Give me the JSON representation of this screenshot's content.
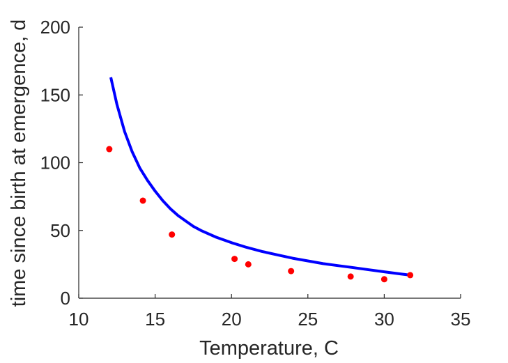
{
  "chart_data": {
    "type": "scatter",
    "xlabel": "Temperature, C",
    "ylabel": "time since birth at emergence, d",
    "xlim": [
      10,
      35
    ],
    "ylim": [
      0,
      200
    ],
    "xticks": [
      "10",
      "15",
      "20",
      "25",
      "30",
      "35"
    ],
    "yticks": [
      "0",
      "50",
      "100",
      "150",
      "200"
    ],
    "grid": false,
    "series": [
      {
        "kind": "points",
        "color": "#ff0000",
        "x": [
          12.0,
          14.2,
          16.1,
          20.2,
          21.1,
          23.9,
          27.8,
          30.0,
          31.7
        ],
        "y": [
          110,
          72,
          47,
          29,
          25,
          20,
          16,
          14,
          17
        ]
      },
      {
        "kind": "line",
        "color": "#0000ff",
        "x": [
          12.1,
          12.5,
          13,
          13.5,
          14,
          14.5,
          15,
          15.5,
          16,
          16.5,
          17,
          17.5,
          18,
          19,
          20,
          21,
          22,
          23,
          24,
          25,
          26,
          27,
          28,
          29,
          30,
          31,
          31.7
        ],
        "y": [
          163,
          143,
          123,
          108,
          96,
          87,
          79,
          72,
          66,
          61,
          57,
          53,
          50,
          45,
          41,
          37.5,
          34.5,
          32,
          29.5,
          27.5,
          25.5,
          24,
          22.5,
          21,
          19.5,
          18,
          17
        ]
      }
    ]
  }
}
